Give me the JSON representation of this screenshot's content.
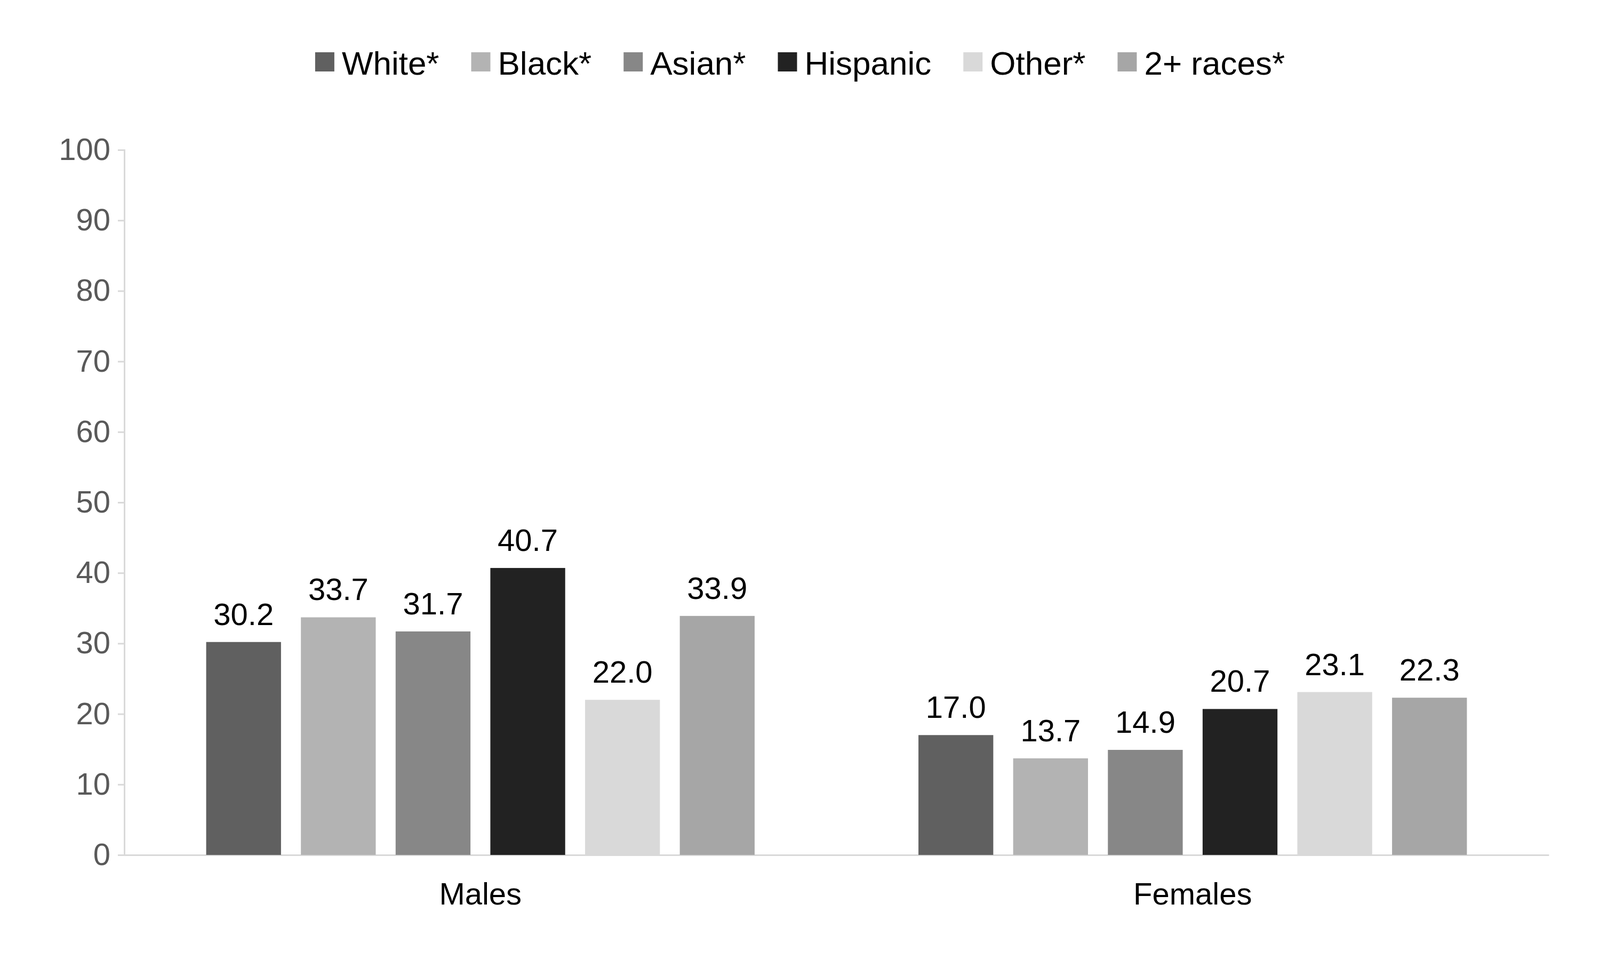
{
  "chart_data": {
    "type": "bar",
    "categories": [
      "Males",
      "Females"
    ],
    "series": [
      {
        "name": "White*",
        "color": "#606060",
        "values": [
          30.2,
          17.0
        ],
        "value_labels": [
          "30.2",
          "17.0"
        ]
      },
      {
        "name": "Black*",
        "color": "#b3b3b3",
        "values": [
          33.7,
          13.7
        ],
        "value_labels": [
          "33.7",
          "13.7"
        ]
      },
      {
        "name": "Asian*",
        "color": "#878787",
        "values": [
          31.7,
          14.9
        ],
        "value_labels": [
          "31.7",
          "14.9"
        ]
      },
      {
        "name": "Hispanic",
        "color": "#222222",
        "values": [
          40.7,
          20.7
        ],
        "value_labels": [
          "40.7",
          "20.7"
        ]
      },
      {
        "name": "Other*",
        "color": "#d9d9d9",
        "values": [
          22.0,
          23.1
        ],
        "value_labels": [
          "22.0",
          "23.1"
        ]
      },
      {
        "name": "2+ races*",
        "color": "#a6a6a6",
        "values": [
          33.9,
          22.3
        ],
        "value_labels": [
          "33.9",
          "22.3"
        ]
      }
    ],
    "ylim": [
      0,
      100
    ],
    "yticks": [
      0,
      10,
      20,
      30,
      40,
      50,
      60,
      70,
      80,
      90,
      100
    ],
    "grid": false,
    "legend": "top",
    "data_labels": true
  }
}
